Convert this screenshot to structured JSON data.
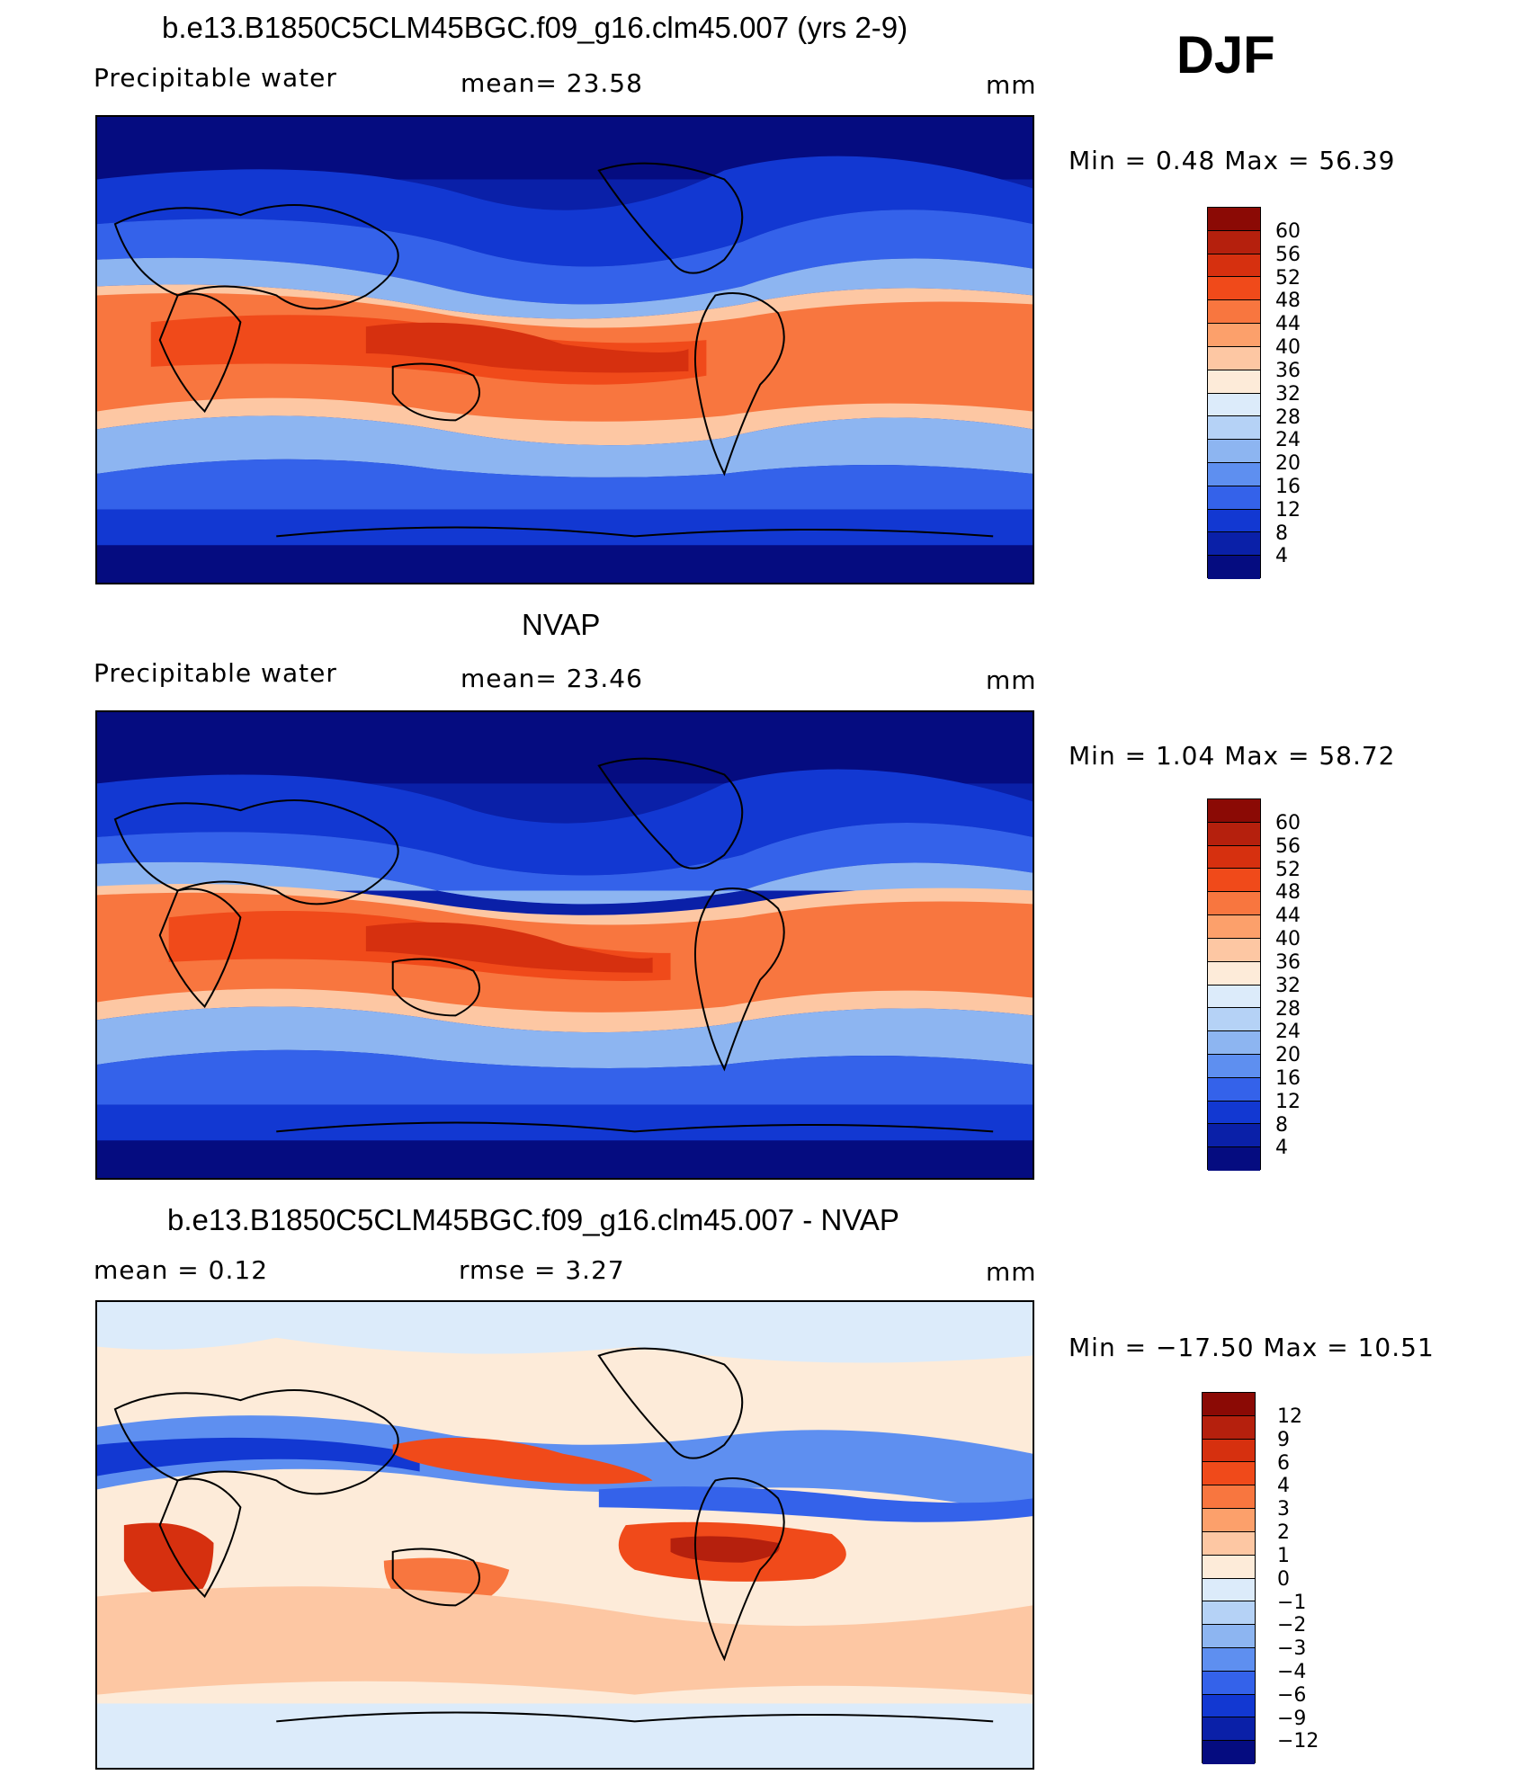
{
  "season": "DJF",
  "panels": [
    {
      "title": "b.e13.B1850C5CLM45BGC.f09_g16.clm45.007 (yrs 2-9)",
      "left_label": "Precipitable  water",
      "center_label": "mean=   23.58",
      "units": "mm",
      "minmax": "Min  =     0.48  Max  =    56.39",
      "colorbar": {
        "ticks": [
          "60",
          "56",
          "52",
          "48",
          "44",
          "40",
          "36",
          "32",
          "28",
          "24",
          "20",
          "16",
          "12",
          "8",
          "4"
        ],
        "colors": [
          "#8b0a05",
          "#b5200d",
          "#d6300f",
          "#f04a1a",
          "#f8763f",
          "#fca06b",
          "#fdc7a3",
          "#fdebd9",
          "#dcebfa",
          "#b5d2f6",
          "#8db5f1",
          "#5e8ff0",
          "#3462ea",
          "#1238d2",
          "#0a20a8",
          "#050c80"
        ]
      }
    },
    {
      "title": "NVAP",
      "left_label": "Precipitable  water",
      "center_label": "mean=   23.46",
      "units": "mm",
      "minmax": "Min  =     1.04  Max  =    58.72",
      "colorbar": {
        "ticks": [
          "60",
          "56",
          "52",
          "48",
          "44",
          "40",
          "36",
          "32",
          "28",
          "24",
          "20",
          "16",
          "12",
          "8",
          "4"
        ],
        "colors": [
          "#8b0a05",
          "#b5200d",
          "#d6300f",
          "#f04a1a",
          "#f8763f",
          "#fca06b",
          "#fdc7a3",
          "#fdebd9",
          "#dcebfa",
          "#b5d2f6",
          "#8db5f1",
          "#5e8ff0",
          "#3462ea",
          "#1238d2",
          "#0a20a8",
          "#050c80"
        ]
      }
    },
    {
      "title": "b.e13.B1850C5CLM45BGC.f09_g16.clm45.007 - NVAP",
      "left_label": "mean  =     0.12",
      "center_label": "rmse  =     3.27",
      "units": "mm",
      "minmax": "Min  = −17.50  Max  =    10.51",
      "colorbar": {
        "ticks": [
          "12",
          "9",
          "6",
          "4",
          "3",
          "2",
          "1",
          "0",
          "−1",
          "−2",
          "−3",
          "−4",
          "−6",
          "−9",
          "−12"
        ],
        "colors": [
          "#8b0a05",
          "#b5200d",
          "#d6300f",
          "#f04a1a",
          "#f8763f",
          "#fca06b",
          "#fdc7a3",
          "#fdebd9",
          "#dcebfa",
          "#b5d2f6",
          "#8db5f1",
          "#5e8ff0",
          "#3462ea",
          "#1238d2",
          "#0a20a8",
          "#050c80"
        ]
      }
    }
  ]
}
